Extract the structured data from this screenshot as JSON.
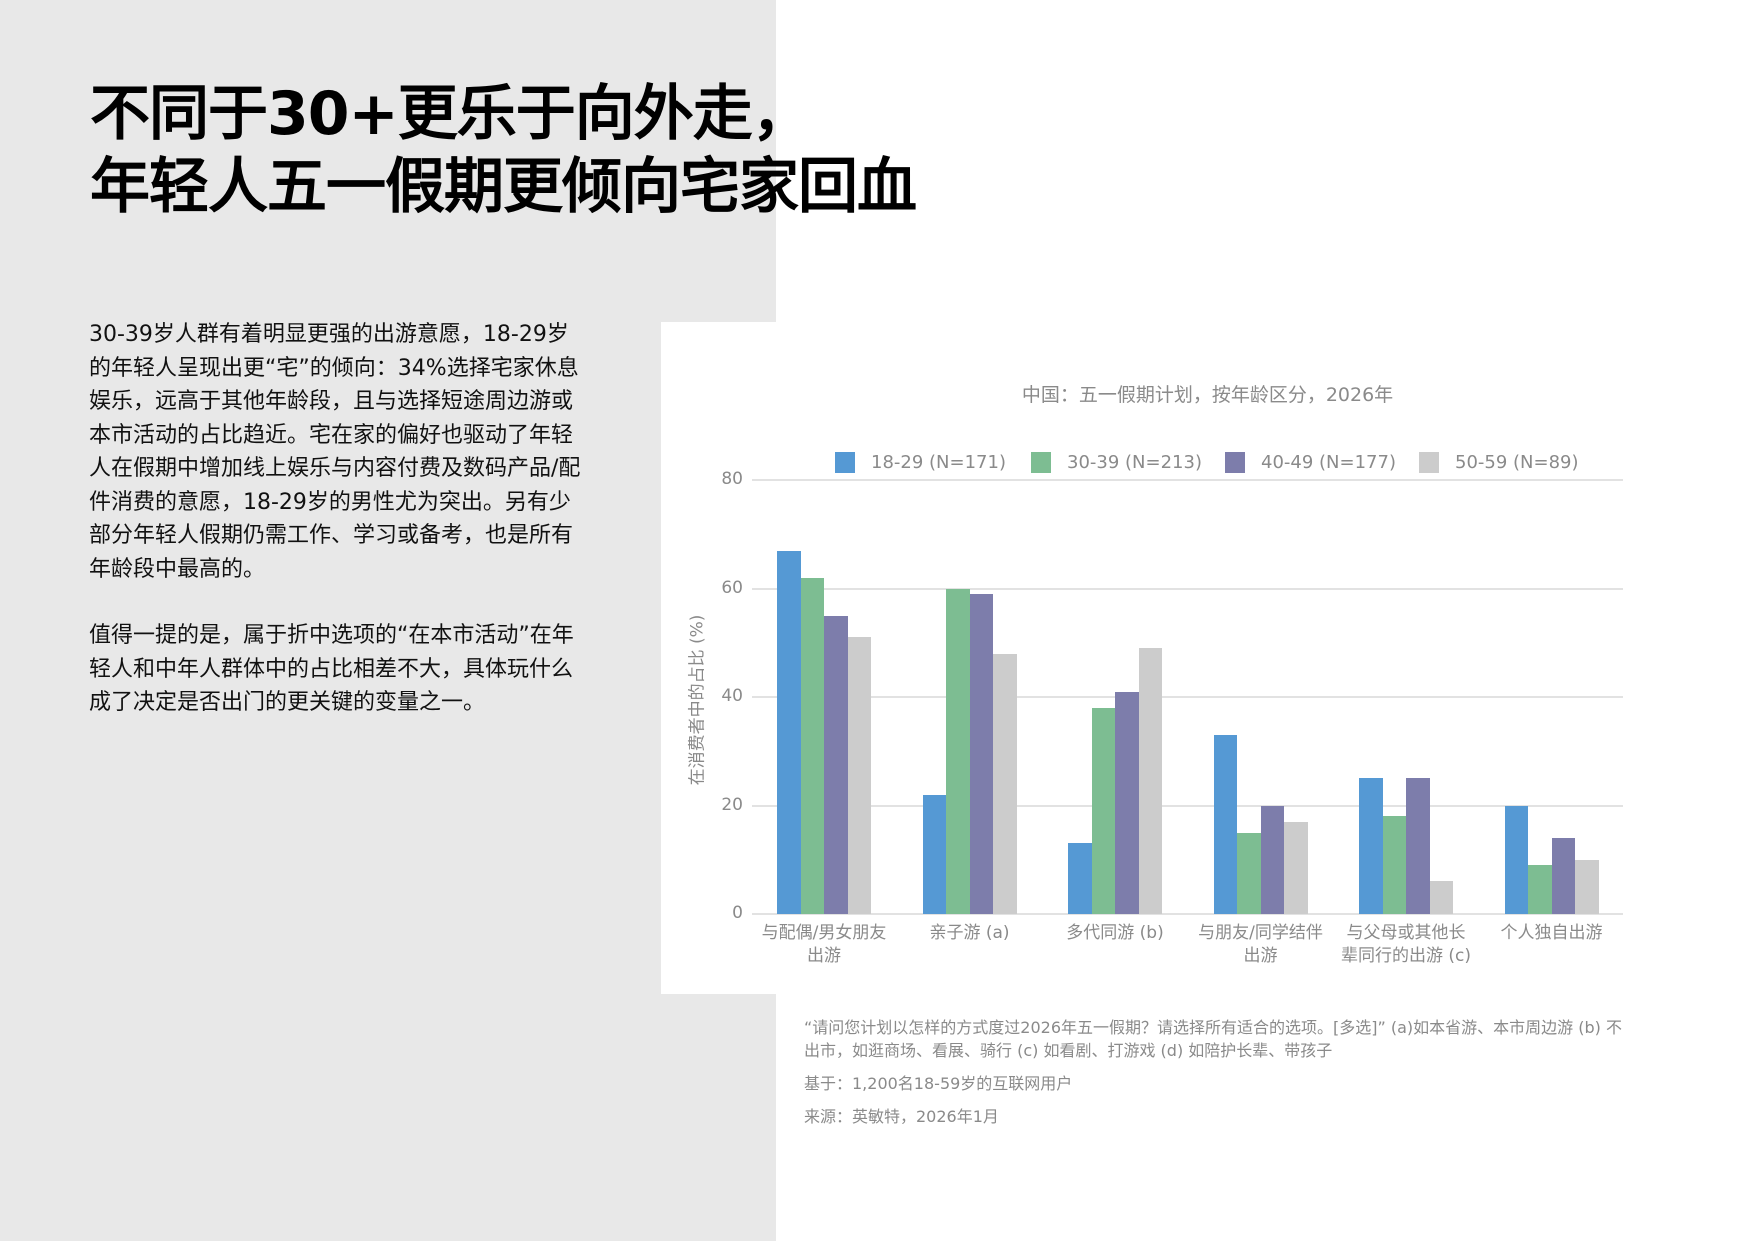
{
  "headline": {
    "line1": "不同于30+更乐于向外走，",
    "line2": "年轻人五一假期更倾向宅家回血"
  },
  "body": {
    "paragraph1": "30-39岁人群有着明显更强的出游意愿，18-29岁的年轻人呈现出更“宅”的倾向：34%选择宅家休息娱乐，远高于其他年龄段，且与选择短途周边游或本市活动的占比趋近。宅在家的偏好也驱动了年轻人在假期中增加线上娱乐与内容付费及数码产品/配件消费的意愿，18-29岁的男性尤为突出。另有少部分年轻人假期仍需工作、学习或备考，也是所有年龄段中最高的。",
    "paragraph2": "值得一提的是，属于折中选项的“在本市活动”在年轻人和中年人群体中的占比相差不大，具体玩什么成了决定是否出门的更关键的变量之一。"
  },
  "chart_data": {
    "type": "bar",
    "title": "中国：五一假期计划，按年龄区分，2026年",
    "xlabel": "",
    "ylabel": "在消费者中的占比 (%)",
    "ylim": [
      0,
      80
    ],
    "yticks": [
      "0",
      "20",
      "40",
      "60",
      "80"
    ],
    "grid": true,
    "legend_position": "top",
    "categories": [
      "与配偶/男女朋友出游",
      "亲子游 (a)",
      "多代同游 (b)",
      "与朋友/同学结伴出游",
      "与父母或其他长辈同行的出游 (c)",
      "个人独自出游"
    ],
    "category_lines": [
      [
        "与配偶/男女朋友",
        "出游"
      ],
      [
        "亲子游 (a)"
      ],
      [
        "多代同游 (b)"
      ],
      [
        "与朋友/同学结伴",
        "出游"
      ],
      [
        "与父母或其他长",
        "辈同行的出游 (c)"
      ],
      [
        "个人独自出游"
      ]
    ],
    "series": [
      {
        "name": "18-29 (N=171)",
        "color": "#5599d4",
        "values": [
          67,
          22,
          13,
          33,
          25,
          20
        ]
      },
      {
        "name": "30-39 (N=213)",
        "color": "#7dbd92",
        "values": [
          62,
          60,
          38,
          15,
          18,
          9
        ]
      },
      {
        "name": "40-49 (N=177)",
        "color": "#7d7dab",
        "values": [
          55,
          59,
          41,
          20,
          25,
          14
        ]
      },
      {
        "name": "50-59 (N=89)",
        "color": "#cccccc",
        "values": [
          51,
          48,
          49,
          17,
          6,
          10
        ]
      }
    ]
  },
  "footnotes": {
    "question": "“请问您计划以怎样的方式度过2026年五一假期？请选择所有适合的选项。[多选]” (a)如本省游、本市周边游 (b) 不出市，如逛商场、看展、骑行 (c) 如看剧、打游戏 (d) 如陪护长辈、带孩子",
    "base": "基于：1,200名18-59岁的互联网用户",
    "source": "来源：英敏特，2026年1月"
  }
}
